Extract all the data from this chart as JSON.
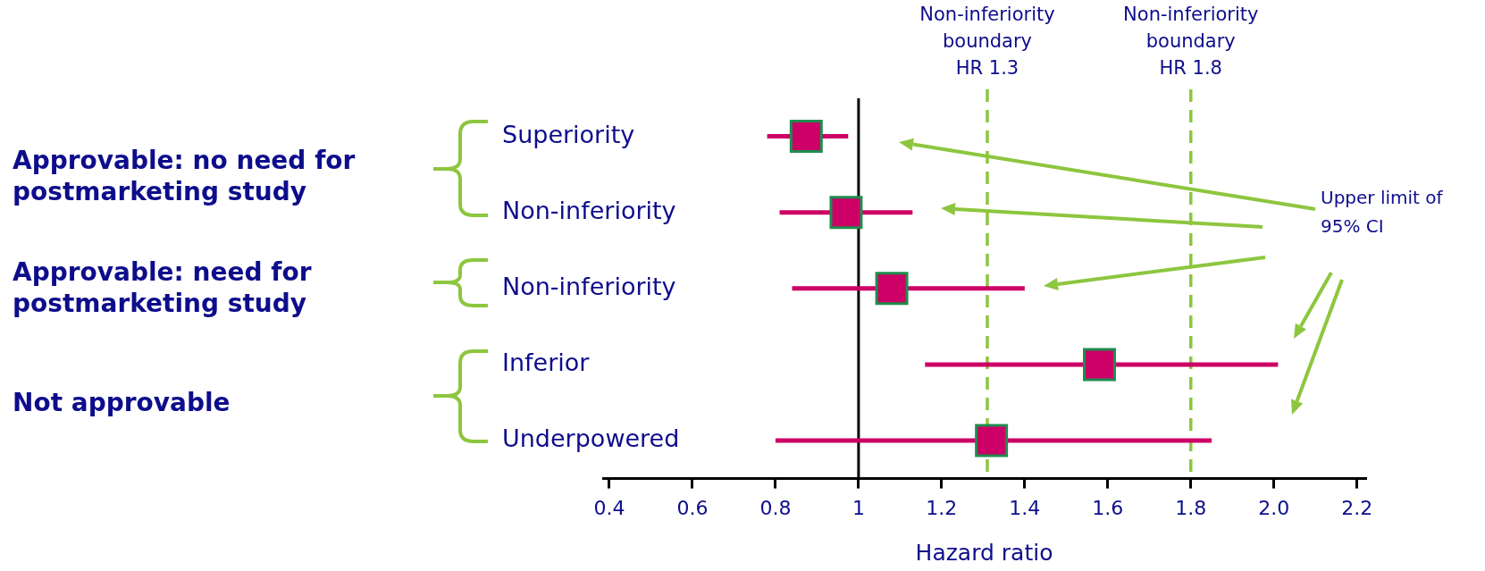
{
  "chart_data": {
    "type": "scatter",
    "orientation": "horizontal",
    "categories": [
      "Superiority",
      "Non-inferiority",
      "Non-inferiority",
      "Inferior",
      "Underpowered"
    ],
    "values": [
      0.874,
      0.97,
      1.08,
      1.58,
      1.32
    ],
    "errors": [
      [
        0.78,
        0.975
      ],
      [
        0.81,
        1.13
      ],
      [
        0.84,
        1.4
      ],
      [
        1.16,
        2.01
      ],
      [
        0.8,
        1.85
      ]
    ],
    "color": "#cc0066",
    "marker": "square",
    "xlabel": "Hazard ratio",
    "xlim": [
      0.385,
      2.22
    ],
    "xticks": [
      0.4,
      0.6,
      0.8,
      1,
      1.2,
      1.4,
      1.6,
      1.8,
      {
        "value": 2,
        "label": "2.0"
      },
      2.2
    ],
    "ref_lines": [
      {
        "axis": "x",
        "value": 1,
        "color": "#000000",
        "line_style": "solid"
      },
      {
        "axis": "x",
        "value": 1.31,
        "label": "Non-inferiority boundary HR 1.3",
        "color": "#8dc63f",
        "line_style": "dashed"
      },
      {
        "axis": "x",
        "value": 1.8,
        "label": "Non-inferiority boundary HR 1.8",
        "color": "#8dc63f",
        "line_style": "dashed"
      }
    ],
    "annotations": [
      "Approvable: no need for postmarketing study",
      "Approvable: need for postmarketing study",
      "Not approvable",
      "Upper limit of 95% CI"
    ],
    "grid": false,
    "legend": false
  }
}
